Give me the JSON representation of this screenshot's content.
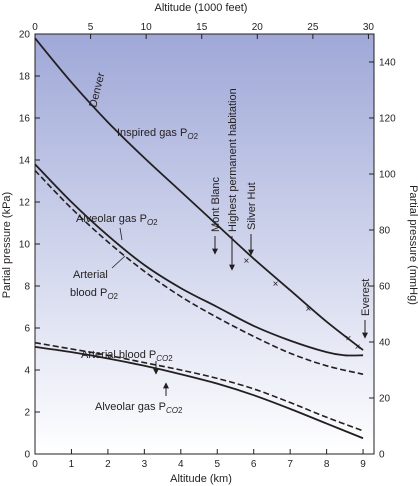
{
  "chart_data": {
    "type": "line",
    "title": "",
    "x_bottom": {
      "label": "Altitude (km)",
      "range": [
        0,
        9.3
      ],
      "ticks": [
        0,
        1,
        2,
        3,
        4,
        5,
        6,
        7,
        8,
        9
      ]
    },
    "x_top": {
      "label": "Altitude (1000 feet)",
      "range": [
        0,
        30.5
      ],
      "ticks": [
        0,
        5,
        10,
        15,
        20,
        25,
        30
      ]
    },
    "y_left": {
      "label": "Partial pressure (kPa)",
      "range": [
        0,
        20
      ],
      "ticks": [
        0,
        2,
        4,
        6,
        8,
        10,
        12,
        14,
        16,
        18,
        20
      ]
    },
    "y_right": {
      "label": "Partial pressure (mmHg)",
      "range": [
        0,
        150
      ],
      "ticks": [
        0,
        20,
        40,
        60,
        80,
        100,
        120,
        140
      ]
    },
    "grid": false,
    "background": {
      "gradient_top": "#9fa8d8",
      "gradient_bottom": "#ffffff"
    },
    "series": [
      {
        "name": "Inspired gas Po2",
        "style": "solid",
        "x": [
          0,
          1,
          2,
          3,
          4,
          5,
          6,
          7,
          8,
          9
        ],
        "y": [
          19.8,
          17.7,
          15.8,
          14.1,
          12.5,
          10.9,
          9.3,
          7.8,
          6.3,
          4.95
        ]
      },
      {
        "name": "Alveolar gas Po2",
        "style": "solid",
        "x": [
          0,
          1,
          2,
          3,
          4,
          5,
          6,
          7,
          8,
          8.5,
          9
        ],
        "y": [
          13.8,
          12.0,
          10.4,
          9.0,
          7.9,
          7.0,
          6.1,
          5.4,
          4.85,
          4.7,
          4.7
        ]
      },
      {
        "name": "Arterial blood Po2",
        "style": "dashed",
        "x": [
          0,
          1,
          2,
          3,
          4,
          5,
          6,
          7,
          8,
          9
        ],
        "y": [
          13.5,
          11.7,
          10.1,
          8.7,
          7.5,
          6.5,
          5.6,
          4.8,
          4.2,
          3.8
        ]
      },
      {
        "name": "Arterial blood Pco2",
        "style": "dashed",
        "x": [
          0,
          1,
          2,
          3,
          4,
          5,
          6,
          7,
          8,
          9
        ],
        "y": [
          5.3,
          5.0,
          4.7,
          4.35,
          4.0,
          3.6,
          3.1,
          2.45,
          1.75,
          1.1
        ]
      },
      {
        "name": "Alveolar gas Pco2",
        "style": "solid",
        "x": [
          0,
          1,
          2,
          3,
          4,
          5,
          6,
          7,
          8,
          9
        ],
        "y": [
          5.1,
          4.85,
          4.55,
          4.2,
          3.8,
          3.35,
          2.8,
          2.15,
          1.45,
          0.75
        ]
      }
    ],
    "x_marks": [
      {
        "x": 5.8,
        "y": 9.2
      },
      {
        "x": 6.6,
        "y": 8.1
      },
      {
        "x": 7.5,
        "y": 6.9
      },
      {
        "x": 8.6,
        "y": 5.5
      },
      {
        "x": 8.85,
        "y": 5.1
      }
    ],
    "annotations": {
      "denver": "Denver",
      "mont_blanc": "Mont Blanc",
      "highest_habitation": "Highest permanent habitation",
      "silver_hut": "Silver Hut",
      "everest": "Everest",
      "inspired_po2": {
        "text": "Inspired gas P",
        "sub": "O",
        "sub2": "2"
      },
      "alveolar_po2": {
        "text": "Alveolar gas P",
        "sub": "O",
        "sub2": "2"
      },
      "arterial_po2_line1": "Arterial",
      "arterial_po2_line2": {
        "text": "blood P",
        "sub": "O",
        "sub2": "2"
      },
      "arterial_pco2": {
        "text": "Arterial blood P",
        "sub": "CO",
        "sub2": "2"
      },
      "alveolar_pco2": {
        "text": "Alveolar gas P",
        "sub": "CO",
        "sub2": "2"
      }
    }
  }
}
